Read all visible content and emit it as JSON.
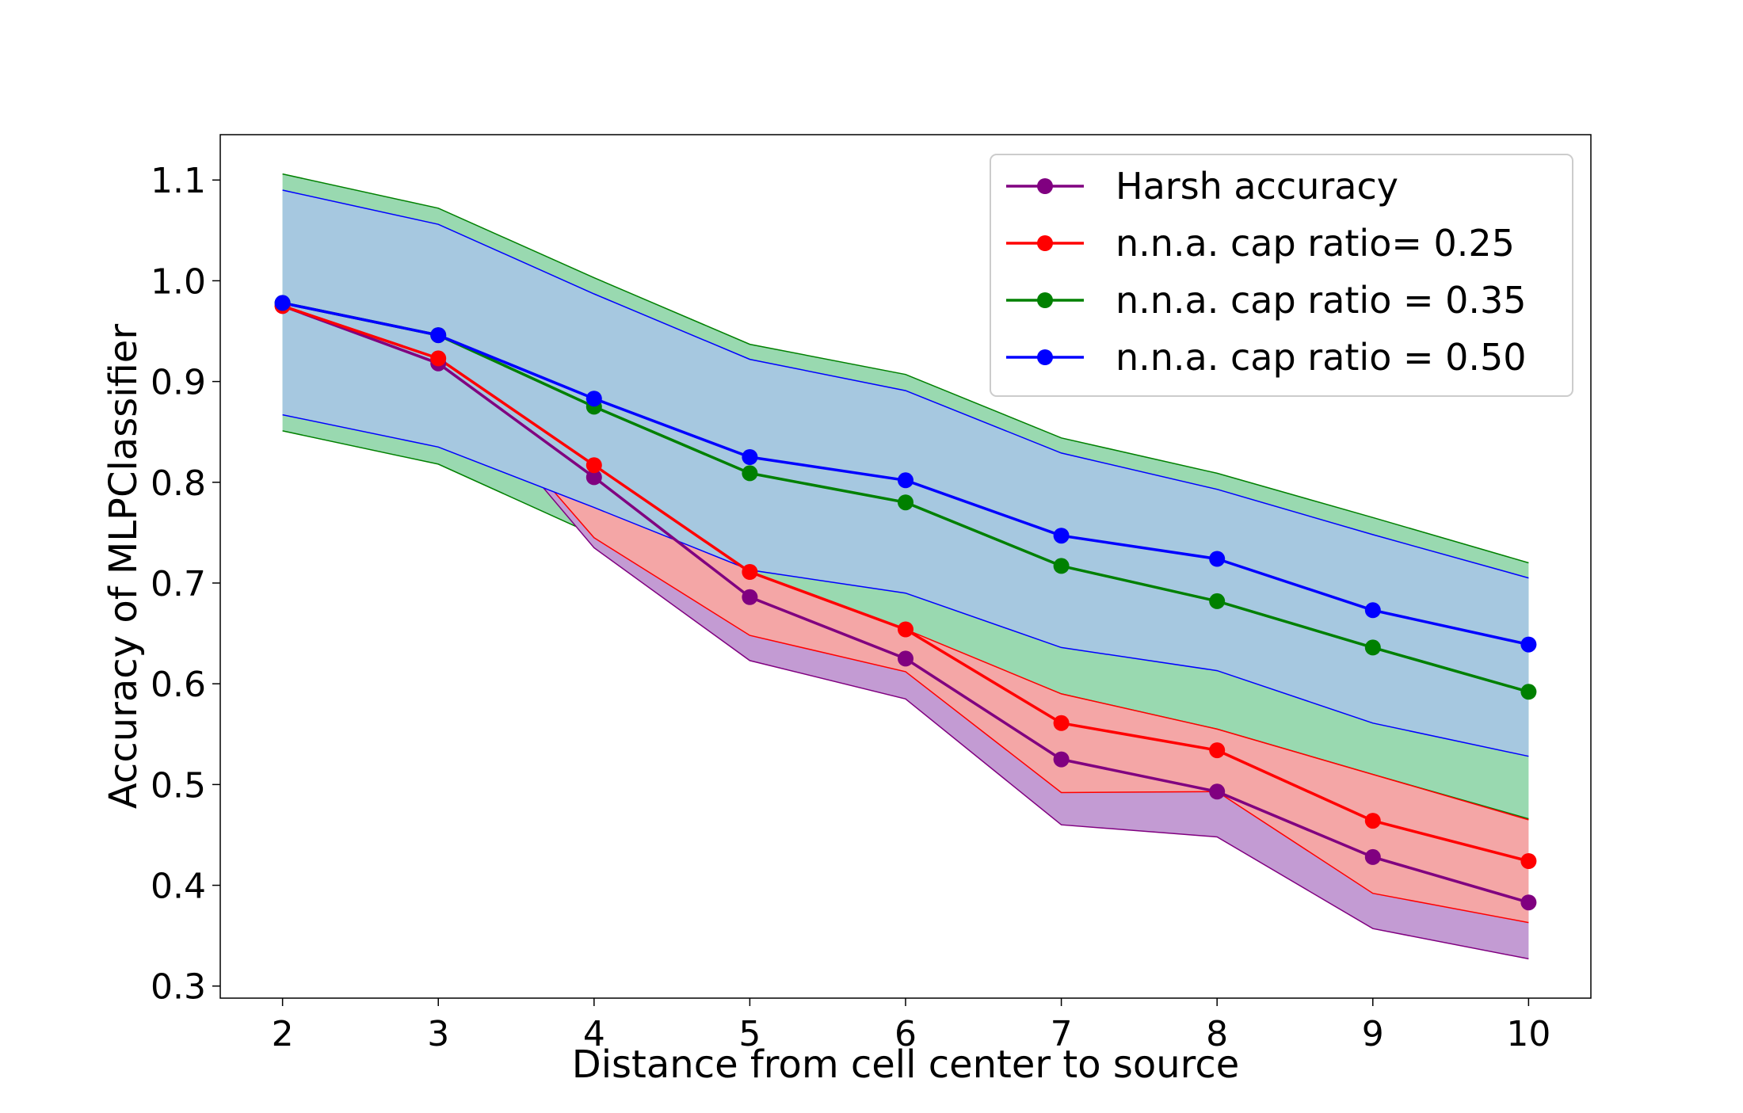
{
  "chart_data": {
    "type": "line",
    "title": "",
    "xlabel": "Distance from cell center to source",
    "ylabel": "Accuracy of MLPClassifier",
    "x": [
      2,
      3,
      4,
      5,
      6,
      7,
      8,
      9,
      10
    ],
    "xlim": [
      1.6,
      10.4
    ],
    "ylim": [
      0.288,
      1.145
    ],
    "x_ticks": [
      2,
      3,
      4,
      5,
      6,
      7,
      8,
      9,
      10
    ],
    "y_ticks": [
      0.3,
      0.4,
      0.5,
      0.6,
      0.7,
      0.8,
      0.9,
      1.0,
      1.1
    ],
    "y_tick_labels": [
      "0.3",
      "0.4",
      "0.5",
      "0.6",
      "0.7",
      "0.8",
      "0.9",
      "1.0",
      "1.1"
    ],
    "grid": false,
    "legend_position": "top-right",
    "series": [
      {
        "name": "Harsh accuracy",
        "color": "#800080",
        "fill_color": "#c39bd3",
        "values": [
          0.975,
          0.918,
          0.805,
          0.686,
          0.625,
          0.525,
          0.493,
          0.428,
          0.383
        ],
        "band_upper": [
          0.975,
          0.918,
          0.805,
          0.686,
          0.625,
          0.525,
          0.493,
          0.428,
          0.383
        ],
        "band_lower": [
          0.975,
          0.918,
          0.735,
          0.623,
          0.585,
          0.46,
          0.448,
          0.357,
          0.327
        ]
      },
      {
        "name": "n.n.a. cap ratio= 0.25",
        "color": "#ff0000",
        "fill_color": "#f4a6a6",
        "values": [
          0.975,
          0.923,
          0.817,
          0.711,
          0.654,
          0.561,
          0.534,
          0.464,
          0.424
        ],
        "band_upper": [
          0.975,
          0.923,
          0.817,
          0.711,
          0.654,
          0.59,
          0.555,
          0.51,
          0.465
        ],
        "band_lower": [
          0.975,
          0.923,
          0.745,
          0.648,
          0.612,
          0.492,
          0.493,
          0.392,
          0.363
        ]
      },
      {
        "name": "n.n.a. cap ratio = 0.35",
        "color": "#008000",
        "fill_color": "#99d9b0",
        "values": [
          0.978,
          0.946,
          0.875,
          0.809,
          0.78,
          0.717,
          0.682,
          0.636,
          0.592
        ],
        "band_upper": [
          1.106,
          1.072,
          1.003,
          0.937,
          0.907,
          0.844,
          0.809,
          0.765,
          0.72
        ],
        "band_lower": [
          0.851,
          0.818,
          0.748,
          0.681,
          0.653,
          0.59,
          0.555,
          0.51,
          0.466
        ]
      },
      {
        "name": "n.n.a. cap ratio = 0.50",
        "color": "#0000ff",
        "fill_color": "#a6c8e0",
        "values": [
          0.978,
          0.946,
          0.883,
          0.825,
          0.802,
          0.747,
          0.724,
          0.673,
          0.639
        ],
        "band_upper": [
          1.09,
          1.056,
          0.987,
          0.922,
          0.891,
          0.829,
          0.793,
          0.748,
          0.705
        ],
        "band_lower": [
          0.867,
          0.835,
          0.775,
          0.713,
          0.69,
          0.636,
          0.613,
          0.561,
          0.528
        ]
      }
    ]
  }
}
